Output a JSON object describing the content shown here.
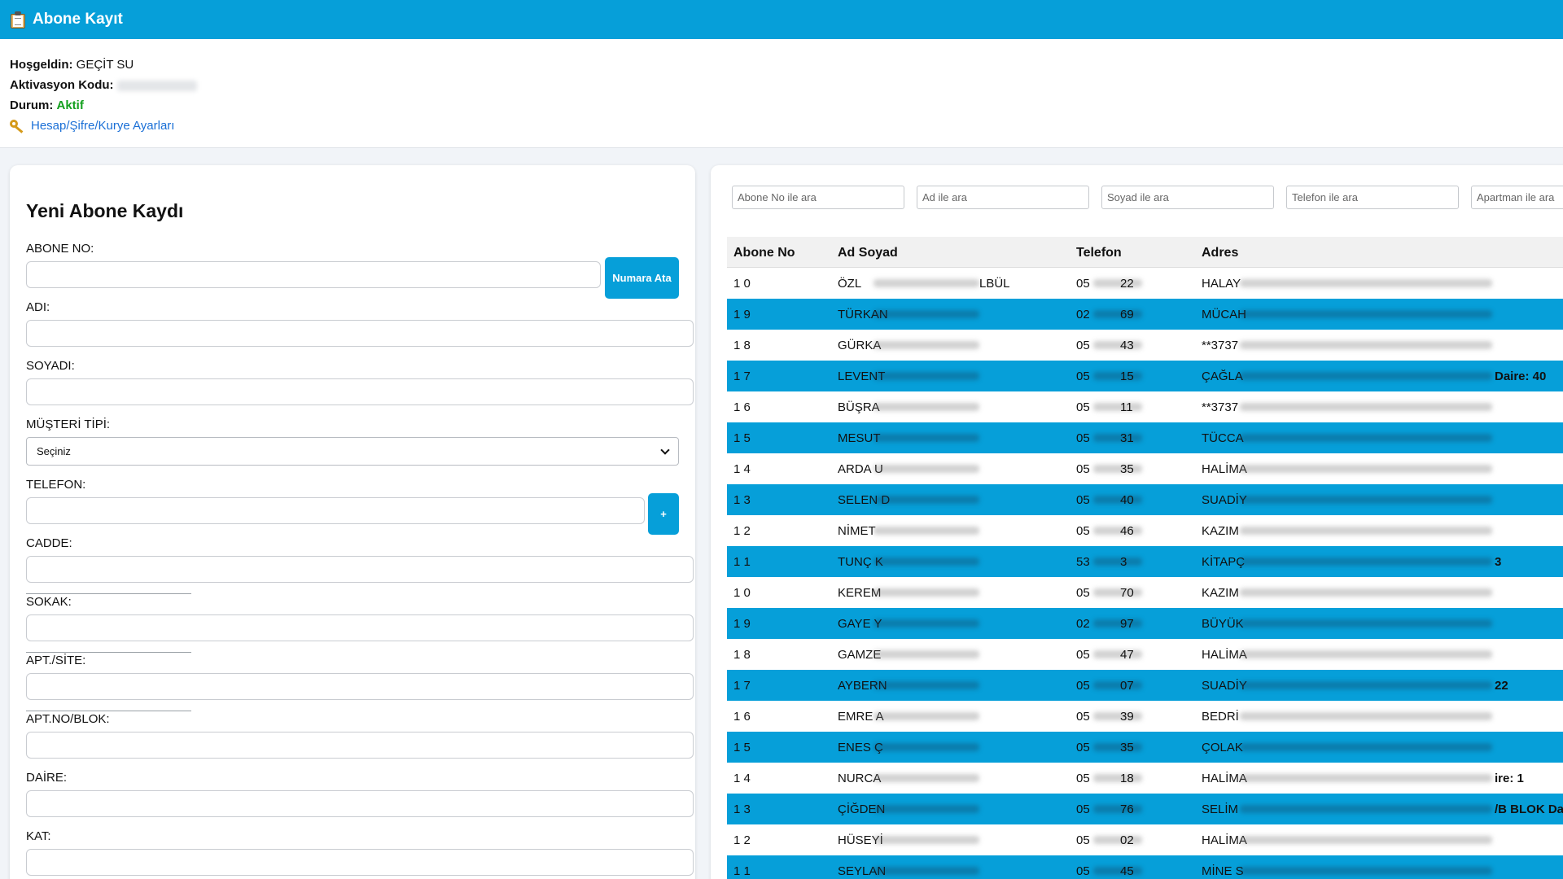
{
  "header": {
    "title": "Abone Kayıt",
    "icon": "clipboard-icon"
  },
  "info": {
    "welcome_label": "Hoşgeldin:",
    "welcome_value": "GEÇİT SU",
    "activation_label": "Aktivasyon Kodu:",
    "status_label": "Durum:",
    "status_value": "Aktif",
    "settings_link": "Hesap/Şifre/Kurye Ayarları"
  },
  "form": {
    "title": "Yeni Abone Kaydı",
    "abone_no_label": "ABONE NO:",
    "numara_ata": "Numara Ata",
    "adi_label": "ADI:",
    "soyadi_label": "SOYADI:",
    "musteri_tipi_label": "MÜŞTERİ TİPİ:",
    "musteri_tipi_value": "Seçiniz",
    "telefon_label": "TELEFON:",
    "add_phone": "+",
    "cadde_label": "CADDE:",
    "sokak_label": "SOKAK:",
    "apt_site_label": "APT./SİTE:",
    "apt_no_label": "APT.NO/BLOK:",
    "daire_label": "DAİRE:",
    "kat_label": "KAT:"
  },
  "search": {
    "abone_no": "Abone No ile ara",
    "ad": "Ad ile ara",
    "soyad": "Soyad ile ara",
    "telefon": "Telefon ile ara",
    "apartman": "Apartman ile ara"
  },
  "table": {
    "headers": [
      "Abone No",
      "Ad Soyad",
      "Telefon",
      "Adres"
    ],
    "rows": [
      {
        "no": "1 0",
        "ad": "ÖZL",
        "ad_tail": "LBÜL",
        "tel": "05",
        "tel_tail": "22",
        "adres": "HALAY",
        "adres_tail": ""
      },
      {
        "no": "1 9",
        "ad": "TÜRKAN",
        "ad_tail": "",
        "tel": "02",
        "tel_tail": "69",
        "adres": "MÜCAH",
        "adres_tail": ""
      },
      {
        "no": "1 8",
        "ad": "GÜRKA",
        "ad_tail": "",
        "tel": "05",
        "tel_tail": "43",
        "adres": "**3737",
        "adres_tail": ""
      },
      {
        "no": "1 7",
        "ad": "LEVENT",
        "ad_tail": "",
        "tel": "05",
        "tel_tail": "15",
        "adres": "ÇAĞLA",
        "adres_tail": "Daire: 40"
      },
      {
        "no": "1 6",
        "ad": "BÜŞRA",
        "ad_tail": "",
        "tel": "05",
        "tel_tail": "11",
        "adres": "**3737",
        "adres_tail": ""
      },
      {
        "no": "1 5",
        "ad": "MESUT",
        "ad_tail": "",
        "tel": "05",
        "tel_tail": "31",
        "adres": "TÜCCA",
        "adres_tail": ""
      },
      {
        "no": "1 4",
        "ad": "ARDA U",
        "ad_tail": "",
        "tel": "05",
        "tel_tail": "35",
        "adres": "HALİMA",
        "adres_tail": ""
      },
      {
        "no": "1 3",
        "ad": "SELEN D",
        "ad_tail": "",
        "tel": "05",
        "tel_tail": "40",
        "adres": "SUADİY",
        "adres_tail": ""
      },
      {
        "no": "1 2",
        "ad": "NİMET",
        "ad_tail": "",
        "tel": "05",
        "tel_tail": "46",
        "adres": "KAZIM",
        "adres_tail": ""
      },
      {
        "no": "1 1",
        "ad": "TUNÇ K",
        "ad_tail": "",
        "tel": "53",
        "tel_tail": "3",
        "adres": "KİTAPÇ",
        "adres_tail": "3"
      },
      {
        "no": "1 0",
        "ad": "KEREM",
        "ad_tail": "",
        "tel": "05",
        "tel_tail": "70",
        "adres": "KAZIM",
        "adres_tail": ""
      },
      {
        "no": "1 9",
        "ad": "GAYE Y",
        "ad_tail": "",
        "tel": "02",
        "tel_tail": "97",
        "adres": "BÜYÜK",
        "adres_tail": ""
      },
      {
        "no": "1 8",
        "ad": "GAMZE",
        "ad_tail": "",
        "tel": "05",
        "tel_tail": "47",
        "adres": "HALİMA",
        "adres_tail": ""
      },
      {
        "no": "1 7",
        "ad": "AYBERN",
        "ad_tail": "",
        "tel": "05",
        "tel_tail": "07",
        "adres": "SUADİY",
        "adres_tail": "22"
      },
      {
        "no": "1 6",
        "ad": "EMRE A",
        "ad_tail": "",
        "tel": "05",
        "tel_tail": "39",
        "adres": "BEDRİ",
        "adres_tail": ""
      },
      {
        "no": "1 5",
        "ad": "ENES Ç",
        "ad_tail": "",
        "tel": "05",
        "tel_tail": "35",
        "adres": "ÇOLAK",
        "adres_tail": ""
      },
      {
        "no": "1 4",
        "ad": "NURCA",
        "ad_tail": "",
        "tel": "05",
        "tel_tail": "18",
        "adres": "HALİMA",
        "adres_tail": "ire: 1"
      },
      {
        "no": "1 3",
        "ad": "ÇİĞDEN",
        "ad_tail": "",
        "tel": "05",
        "tel_tail": "76",
        "adres": "SELİM",
        "adres_tail": "/B BLOK Da"
      },
      {
        "no": "1 2",
        "ad": "HÜSEYİ",
        "ad_tail": "",
        "tel": "05",
        "tel_tail": "02",
        "adres": "HALİMA",
        "adres_tail": ""
      },
      {
        "no": "1 1",
        "ad": "SEYLAN",
        "ad_tail": "",
        "tel": "05",
        "tel_tail": "45",
        "adres": "MİNE S",
        "adres_tail": ""
      }
    ]
  },
  "colors": {
    "accent": "#069fd9",
    "active": "#14a01e",
    "link": "#1a6fd6"
  }
}
